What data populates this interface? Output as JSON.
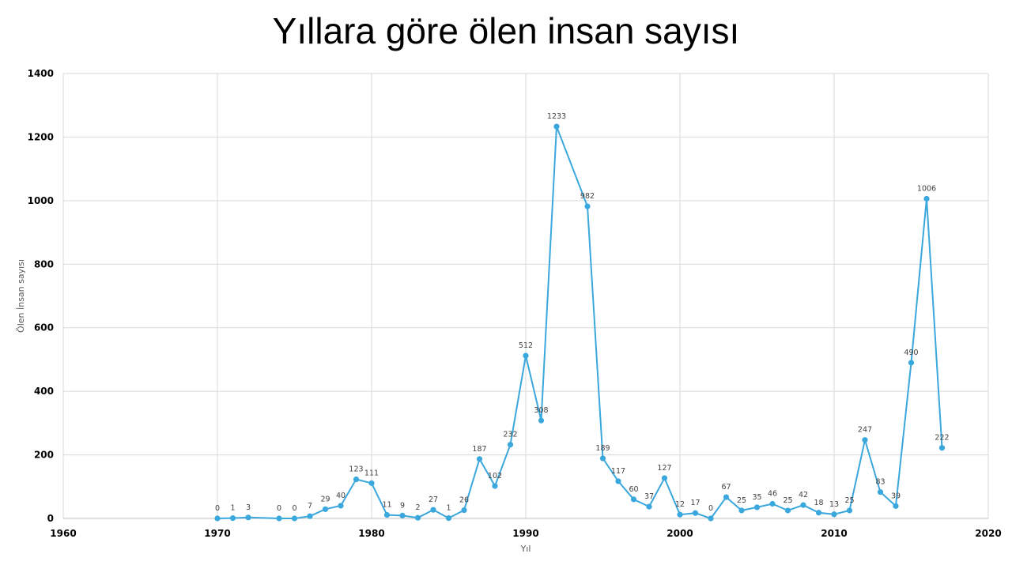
{
  "chart_data": {
    "type": "scatter",
    "title": "Yıllara göre ölen insan sayısı",
    "xlabel": "Yıl",
    "ylabel": "Ölen İnsan sayısı",
    "xlim": [
      1960,
      2020
    ],
    "ylim": [
      0,
      1400
    ],
    "xticks": [
      1960,
      1970,
      1980,
      1990,
      2000,
      2010,
      2020
    ],
    "yticks": [
      0,
      200,
      400,
      600,
      800,
      1000,
      1200,
      1400
    ],
    "grid": true,
    "legend": "none",
    "line_color": "#3aa7dd",
    "x": [
      1970,
      1971,
      1972,
      1974,
      1975,
      1976,
      1977,
      1978,
      1979,
      1980,
      1981,
      1982,
      1983,
      1984,
      1985,
      1986,
      1987,
      1988,
      1989,
      1990,
      1991,
      1992,
      1994,
      1995,
      1996,
      1997,
      1998,
      1999,
      2000,
      2001,
      2002,
      2003,
      2004,
      2005,
      2006,
      2007,
      2008,
      2009,
      2010,
      2011,
      2012,
      2013,
      2014,
      2015,
      2016,
      2017
    ],
    "y": [
      0,
      1,
      3,
      0,
      0,
      7,
      29,
      40,
      123,
      111,
      11,
      9,
      2,
      27,
      1,
      26,
      187,
      102,
      232,
      512,
      308,
      1233,
      982,
      189,
      117,
      60,
      37,
      127,
      12,
      17,
      0,
      67,
      25,
      35,
      46,
      25,
      42,
      18,
      13,
      25,
      247,
      83,
      39,
      490,
      1006,
      222
    ]
  }
}
